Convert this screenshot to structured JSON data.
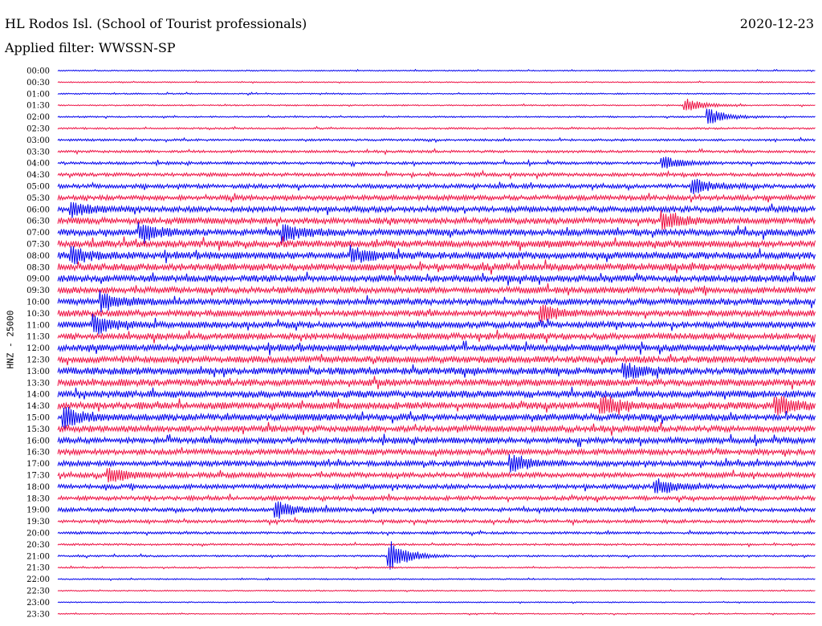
{
  "header": {
    "station": "HL Rodos Isl. (School of Tourist professionals)",
    "date": "2020-12-23",
    "filter": "Applied filter: WWSSN-SP"
  },
  "chart_data": {
    "type": "line",
    "title": "HL Rodos Isl. (School of Tourist professionals)",
    "ylabel": "HNZ - 25000",
    "xlabel": "",
    "trace_times": [
      "00:00",
      "00:30",
      "01:00",
      "01:30",
      "02:00",
      "02:30",
      "03:00",
      "03:30",
      "04:00",
      "04:30",
      "05:00",
      "05:30",
      "06:00",
      "06:30",
      "07:00",
      "07:30",
      "08:00",
      "08:30",
      "09:00",
      "09:30",
      "10:00",
      "10:30",
      "11:00",
      "11:30",
      "12:00",
      "12:30",
      "13:00",
      "13:30",
      "14:00",
      "14:30",
      "15:00",
      "15:30",
      "16:00",
      "16:30",
      "17:00",
      "17:30",
      "18:00",
      "18:30",
      "19:00",
      "19:30",
      "20:00",
      "20:30",
      "21:00",
      "21:30",
      "22:00",
      "22:30",
      "23:00",
      "23:30"
    ],
    "trace_colors": [
      "#0000ee",
      "#ee1144"
    ],
    "noise_levels": [
      0.15,
      0.15,
      0.18,
      0.18,
      0.2,
      0.25,
      0.3,
      0.35,
      0.4,
      0.5,
      0.6,
      0.7,
      0.8,
      0.9,
      0.95,
      1,
      1,
      1,
      0.95,
      0.9,
      0.9,
      0.9,
      0.9,
      0.9,
      0.95,
      0.95,
      1,
      1,
      1,
      1,
      0.95,
      0.9,
      0.85,
      0.8,
      0.75,
      0.7,
      0.65,
      0.6,
      0.55,
      0.45,
      0.35,
      0.28,
      0.25,
      0.2,
      0.18,
      0.16,
      0.15,
      0.15
    ],
    "events": [
      {
        "trace": "01:30",
        "at": 0.83,
        "amp": 8
      },
      {
        "trace": "02:00",
        "at": 0.86,
        "amp": 10
      },
      {
        "trace": "04:00",
        "at": 0.8,
        "amp": 8
      },
      {
        "trace": "05:00",
        "at": 0.84,
        "amp": 9
      },
      {
        "trace": "06:00",
        "at": 0.02,
        "amp": 9
      },
      {
        "trace": "06:30",
        "at": 0.8,
        "amp": 10
      },
      {
        "trace": "07:00",
        "at": 0.11,
        "amp": 10
      },
      {
        "trace": "07:00",
        "at": 0.3,
        "amp": 9
      },
      {
        "trace": "08:00",
        "at": 0.02,
        "amp": 9
      },
      {
        "trace": "08:00",
        "at": 0.39,
        "amp": 9
      },
      {
        "trace": "10:00",
        "at": 0.06,
        "amp": 11
      },
      {
        "trace": "10:30",
        "at": 0.64,
        "amp": 9
      },
      {
        "trace": "11:00",
        "at": 0.05,
        "amp": 11
      },
      {
        "trace": "13:00",
        "at": 0.75,
        "amp": 9
      },
      {
        "trace": "14:30",
        "at": 0.72,
        "amp": 12
      },
      {
        "trace": "14:30",
        "at": 0.95,
        "amp": 12
      },
      {
        "trace": "15:00",
        "at": 0.01,
        "amp": 12
      },
      {
        "trace": "17:00",
        "at": 0.6,
        "amp": 10
      },
      {
        "trace": "17:30",
        "at": 0.07,
        "amp": 9
      },
      {
        "trace": "18:00",
        "at": 0.79,
        "amp": 10
      },
      {
        "trace": "19:00",
        "at": 0.29,
        "amp": 10
      },
      {
        "trace": "21:00",
        "at": 0.44,
        "amp": 18
      }
    ],
    "grid": false,
    "legend": "none"
  }
}
